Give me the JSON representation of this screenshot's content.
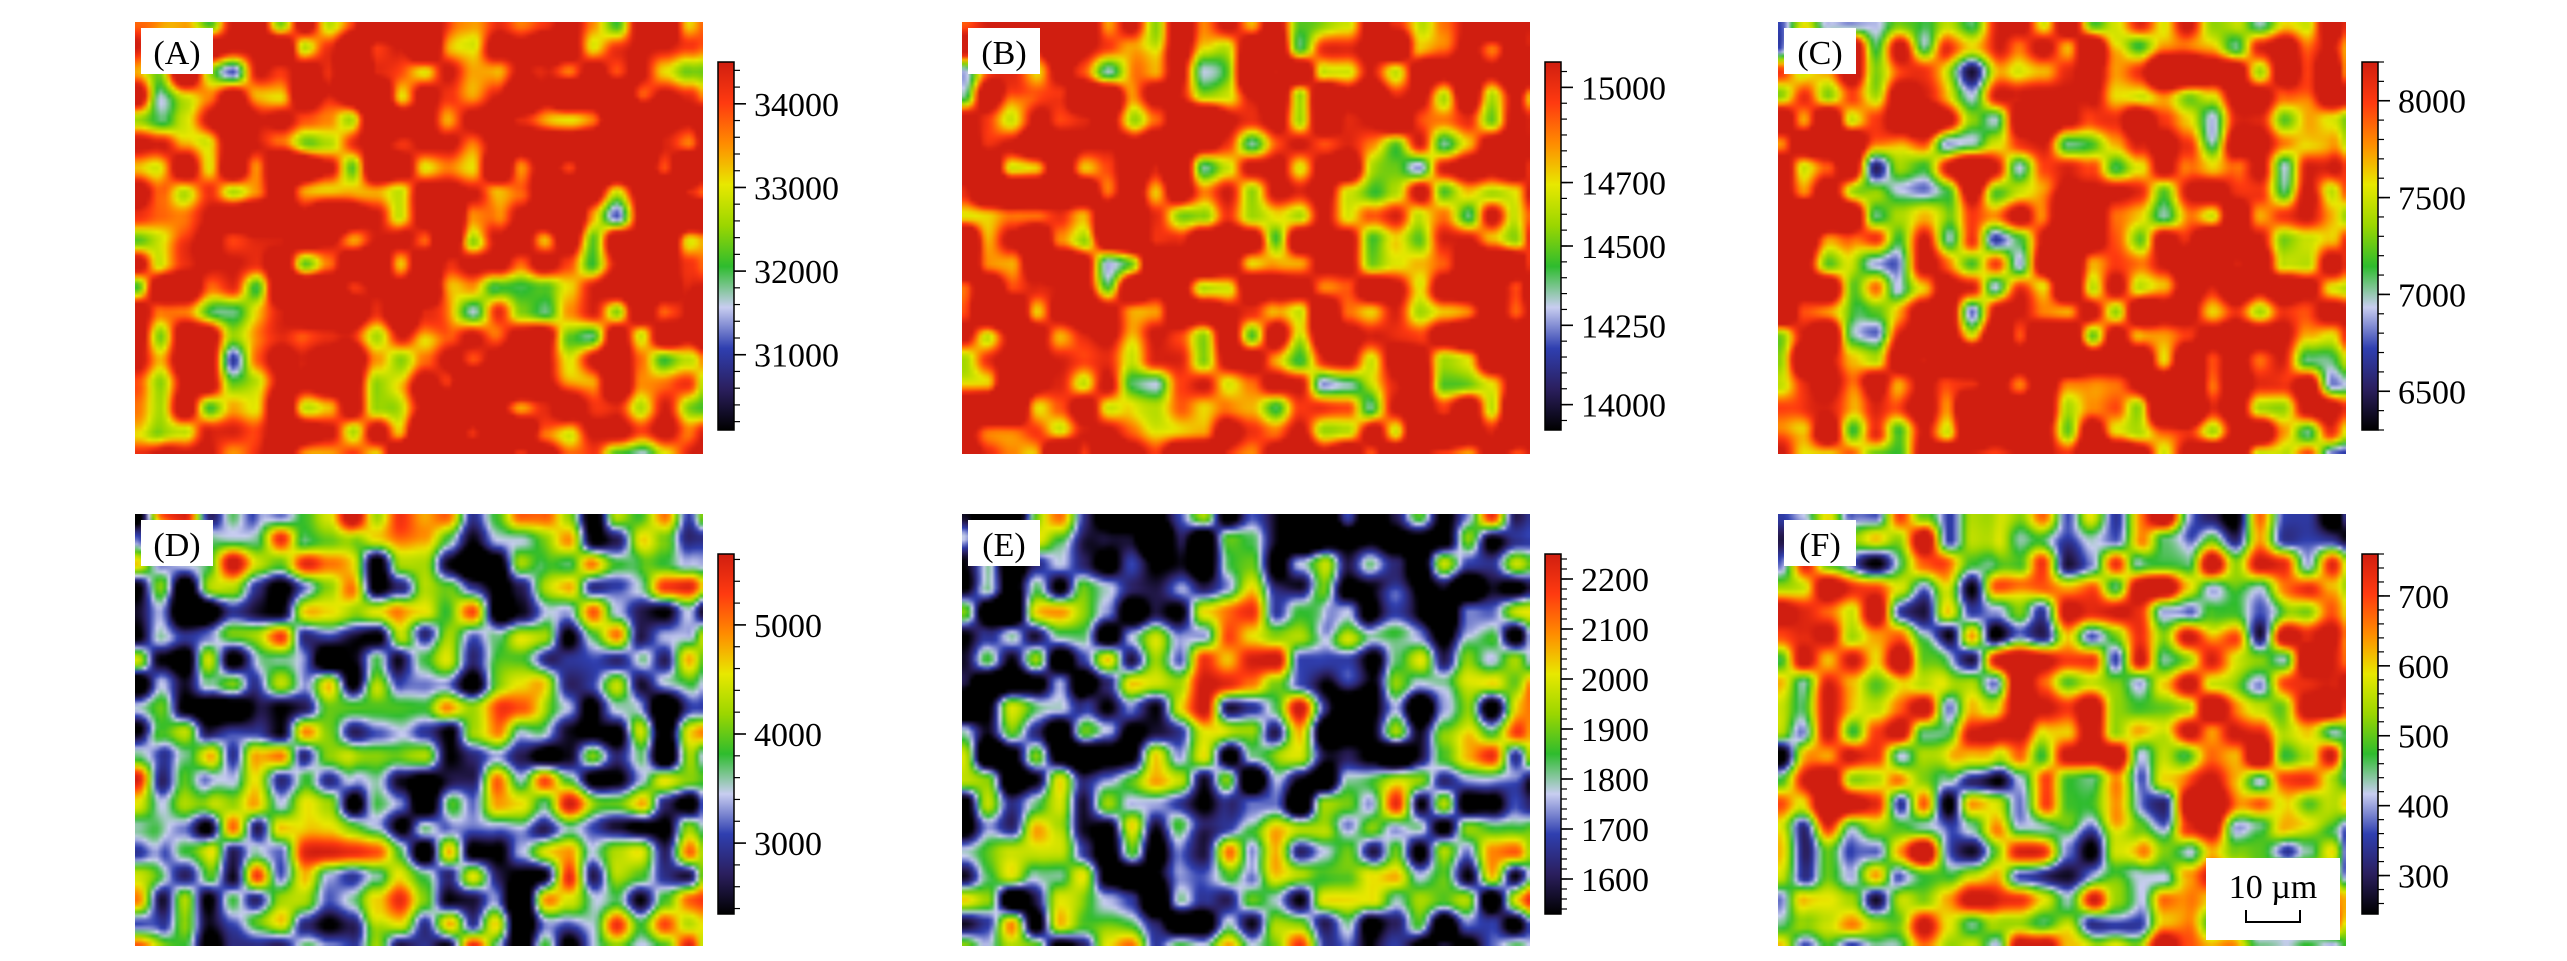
{
  "colors": {
    "scale": [
      "#000000",
      "#2b1f5e",
      "#2f3fb0",
      "#c8cdf0",
      "#2ebc2e",
      "#9bd600",
      "#e8e800",
      "#ff8c00",
      "#ff3a10",
      "#d01e10"
    ]
  },
  "chart_data": [
    {
      "type": "heatmap",
      "panel_label": "(A)",
      "colorbar": {
        "ticks": [
          31000,
          32000,
          33000,
          34000
        ],
        "range": [
          30100,
          34500
        ]
      },
      "palette_bias": 0.72,
      "seed": 11
    },
    {
      "type": "heatmap",
      "panel_label": "(B)",
      "colorbar": {
        "ticks": [
          14000,
          14250,
          14500,
          14700,
          15000
        ],
        "range": [
          13920,
          15080
        ]
      },
      "palette_bias": 0.74,
      "seed": 23
    },
    {
      "type": "heatmap",
      "panel_label": "(C)",
      "colorbar": {
        "ticks": [
          6500,
          7000,
          7500,
          8000
        ],
        "range": [
          6300,
          8200
        ]
      },
      "palette_bias": 0.68,
      "seed": 37
    },
    {
      "type": "heatmap",
      "panel_label": "(D)",
      "colorbar": {
        "ticks": [
          3000,
          4000,
          5000
        ],
        "range": [
          2350,
          5650
        ]
      },
      "palette_bias": 0.42,
      "seed": 41
    },
    {
      "type": "heatmap",
      "panel_label": "(E)",
      "colorbar": {
        "ticks": [
          1600,
          1700,
          1800,
          1900,
          2000,
          2100,
          2200
        ],
        "range": [
          1530,
          2250
        ]
      },
      "palette_bias": 0.4,
      "seed": 53
    },
    {
      "type": "heatmap",
      "panel_label": "(F)",
      "colorbar": {
        "ticks": [
          300,
          400,
          500,
          600,
          700
        ],
        "range": [
          245,
          760
        ]
      },
      "palette_bias": 0.55,
      "seed": 67,
      "scale_bar": "10 µm"
    }
  ]
}
